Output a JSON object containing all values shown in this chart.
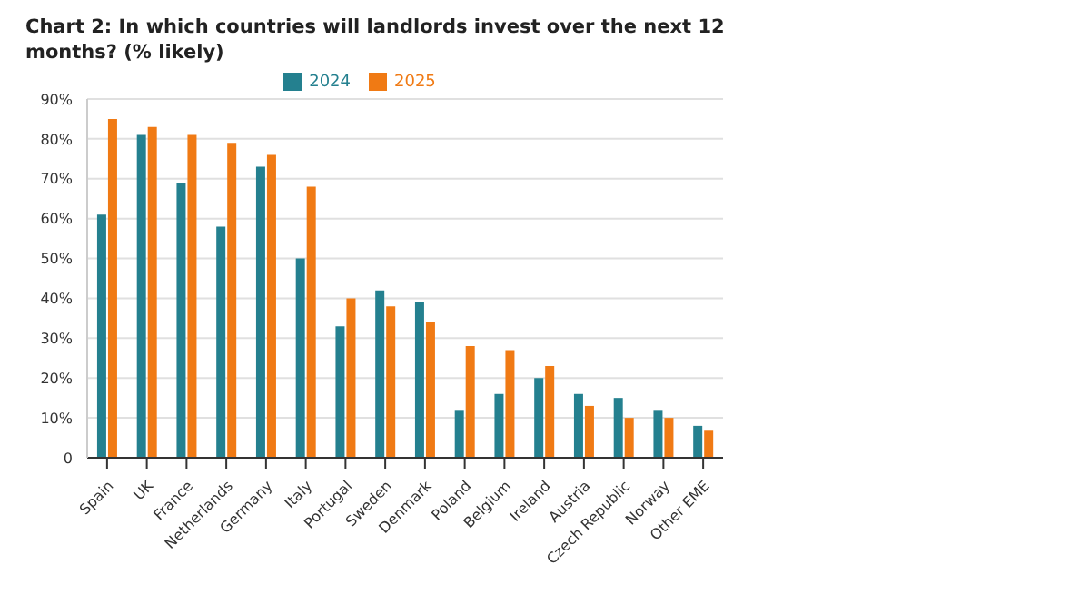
{
  "chart_data": {
    "type": "bar",
    "title": "Chart 2: In which countries will landlords invest over the next 12 months? (% likely)",
    "categories": [
      "Spain",
      "UK",
      "France",
      "Netherlands",
      "Germany",
      "Italy",
      "Portugal",
      "Sweden",
      "Denmark",
      "Poland",
      "Belgium",
      "Ireland",
      "Austria",
      "Czech Republic",
      "Norway",
      "Other EME"
    ],
    "series": [
      {
        "name": "2024",
        "color": "#24808f",
        "values": [
          61,
          81,
          69,
          58,
          73,
          50,
          33,
          42,
          39,
          12,
          16,
          20,
          16,
          15,
          12,
          8
        ]
      },
      {
        "name": "2025",
        "color": "#f07a14",
        "values": [
          85,
          83,
          81,
          79,
          76,
          68,
          40,
          38,
          34,
          28,
          27,
          23,
          13,
          10,
          10,
          7
        ]
      }
    ],
    "ylim": [
      0,
      90
    ],
    "yticks": [
      0,
      {
        "value": 10,
        "label": "10%"
      },
      {
        "value": 20,
        "label": "20%"
      },
      {
        "value": 30,
        "label": "30%"
      },
      {
        "value": 40,
        "label": "40%"
      },
      {
        "value": 50,
        "label": "50%"
      },
      {
        "value": 60,
        "label": "60%"
      },
      {
        "value": 70,
        "label": "70%"
      },
      {
        "value": 80,
        "label": "80%"
      },
      {
        "value": 90,
        "label": "90%"
      }
    ],
    "grid": "y",
    "legend": "top"
  }
}
